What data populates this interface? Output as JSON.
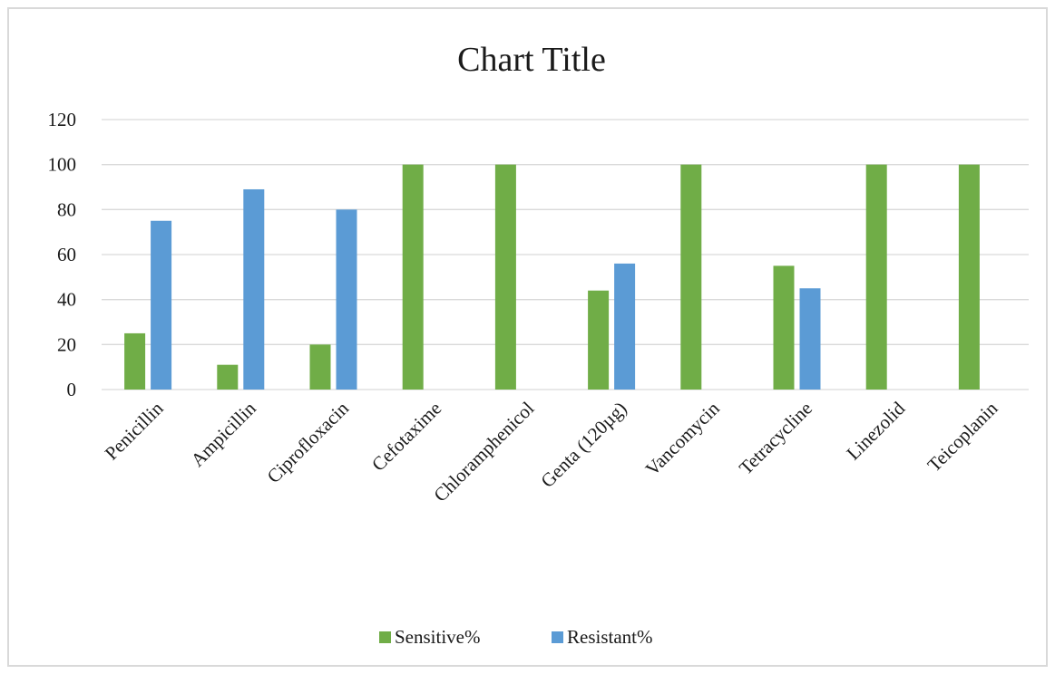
{
  "chart_data": {
    "type": "bar",
    "title": "Chart Title",
    "categories": [
      "Penicillin",
      "Ampicillin",
      "Ciprofloxacin",
      "Cefotaxime",
      "Chloramphenicol",
      "Genta (120µg)",
      "Vancomycin",
      "Tetracycline",
      "Linezolid",
      "Teicoplanin"
    ],
    "series": [
      {
        "name": "Sensitive%",
        "color": "#70ad47",
        "values": [
          25,
          11,
          20,
          100,
          100,
          44,
          100,
          55,
          100,
          100
        ]
      },
      {
        "name": "Resistant%",
        "color": "#5b9bd5",
        "values": [
          75,
          89,
          80,
          0,
          0,
          56,
          0,
          45,
          0,
          0
        ]
      }
    ],
    "y_ticks": [
      "0",
      "20",
      "40",
      "60",
      "80",
      "100",
      "120"
    ],
    "ylim": [
      0,
      120
    ],
    "grid": true,
    "legend_position": "bottom"
  }
}
